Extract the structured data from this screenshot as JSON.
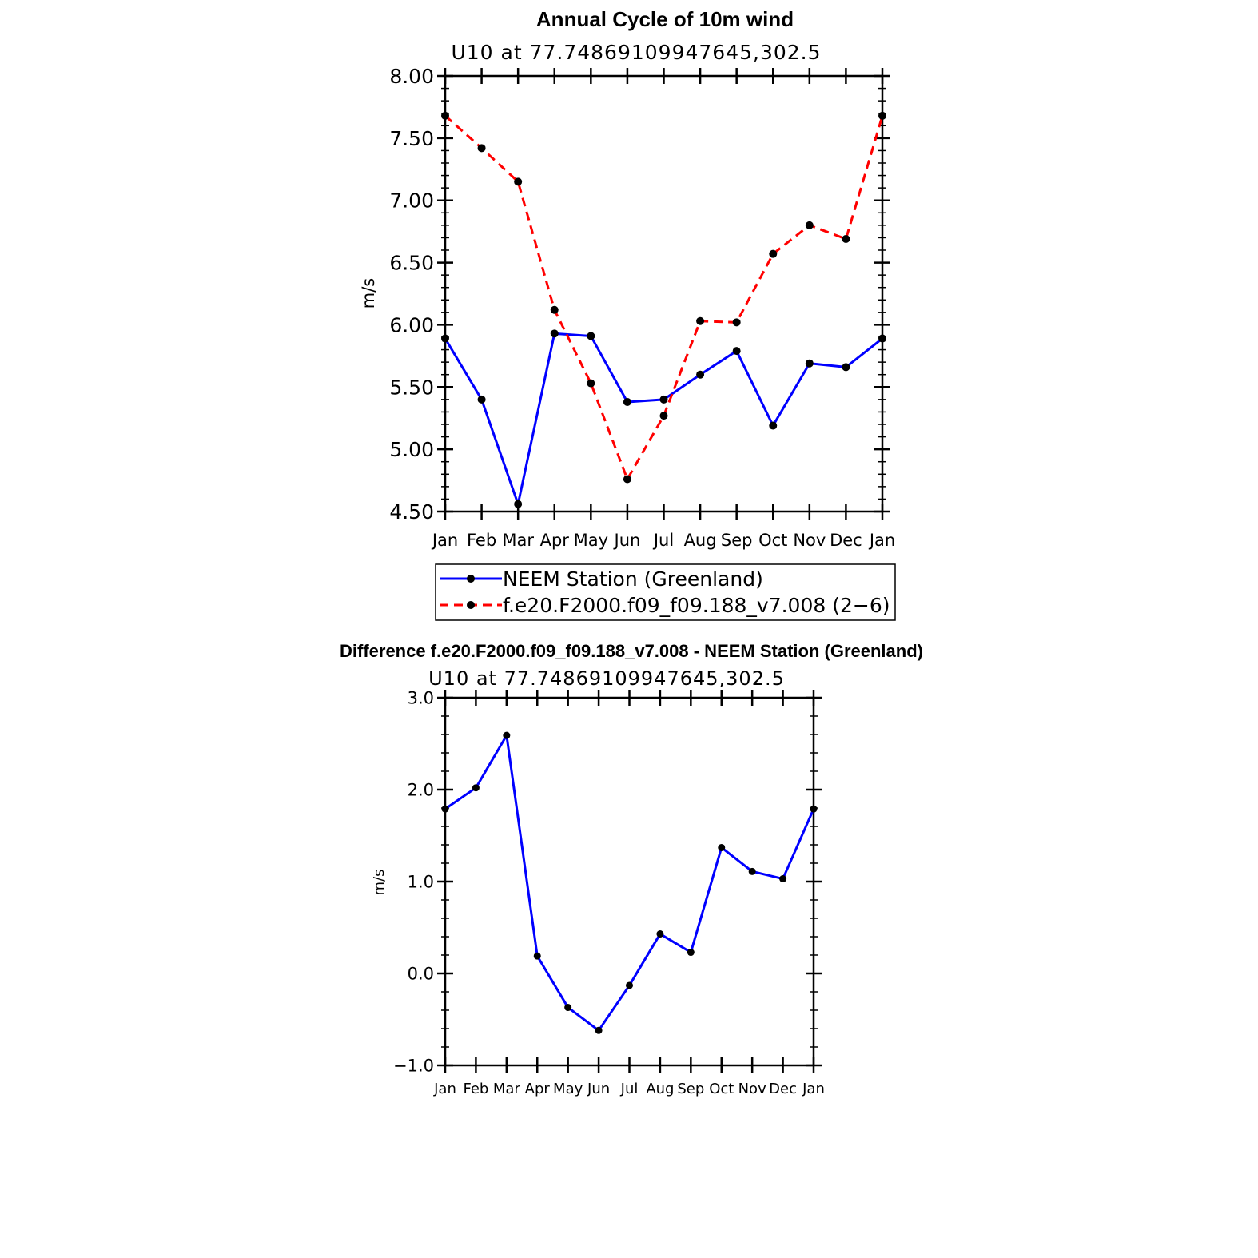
{
  "chart_data": [
    {
      "type": "line",
      "title": "Annual Cycle of 10m wind",
      "subtitle": "U10 at 77.74869109947645,302.5",
      "ylabel": "m/s",
      "xlabel": "",
      "categories": [
        "Jan",
        "Feb",
        "Mar",
        "Apr",
        "May",
        "Jun",
        "Jul",
        "Aug",
        "Sep",
        "Oct",
        "Nov",
        "Dec",
        "Jan"
      ],
      "ylim": [
        4.5,
        8.0
      ],
      "yticks": [
        "4.50",
        "5.00",
        "5.50",
        "6.00",
        "6.50",
        "7.00",
        "7.50",
        "8.00"
      ],
      "yticks_values": [
        4.5,
        5.0,
        5.5,
        6.0,
        6.5,
        7.0,
        7.5,
        8.0
      ],
      "y_minor_step": 0.1,
      "grid": false,
      "legend": "below",
      "series": [
        {
          "name": "NEEM Station (Greenland)",
          "color": "#0000ff",
          "dash": "solid",
          "values": [
            5.89,
            5.4,
            4.56,
            5.93,
            5.91,
            5.38,
            5.4,
            5.6,
            5.79,
            5.19,
            5.69,
            5.66,
            5.89
          ]
        },
        {
          "name": "f.e20.F2000.f09_f09.188_v7.008 (2−6)",
          "color": "#ff0000",
          "dash": "dashed",
          "values": [
            7.68,
            7.42,
            7.15,
            6.12,
            5.53,
            4.76,
            5.27,
            6.03,
            6.02,
            6.57,
            6.8,
            6.69,
            7.68
          ]
        }
      ]
    },
    {
      "type": "line",
      "title": "Difference f.e20.F2000.f09_f09.188_v7.008 - NEEM Station (Greenland)",
      "subtitle": "U10 at 77.74869109947645,302.5",
      "ylabel": "m/s",
      "xlabel": "",
      "categories": [
        "Jan",
        "Feb",
        "Mar",
        "Apr",
        "May",
        "Jun",
        "Jul",
        "Aug",
        "Sep",
        "Oct",
        "Nov",
        "Dec",
        "Jan"
      ],
      "ylim": [
        -1.0,
        3.0
      ],
      "yticks": [
        "−1.0",
        "0.0",
        "1.0",
        "2.0",
        "3.0"
      ],
      "yticks_values": [
        -1.0,
        0.0,
        1.0,
        2.0,
        3.0
      ],
      "y_minor_step": 0.2,
      "grid": false,
      "series": [
        {
          "color": "#0000ff",
          "dash": "solid",
          "values": [
            1.79,
            2.02,
            2.59,
            0.19,
            -0.37,
            -0.62,
            -0.13,
            0.43,
            0.23,
            1.37,
            1.11,
            1.03,
            1.79
          ]
        }
      ]
    }
  ]
}
